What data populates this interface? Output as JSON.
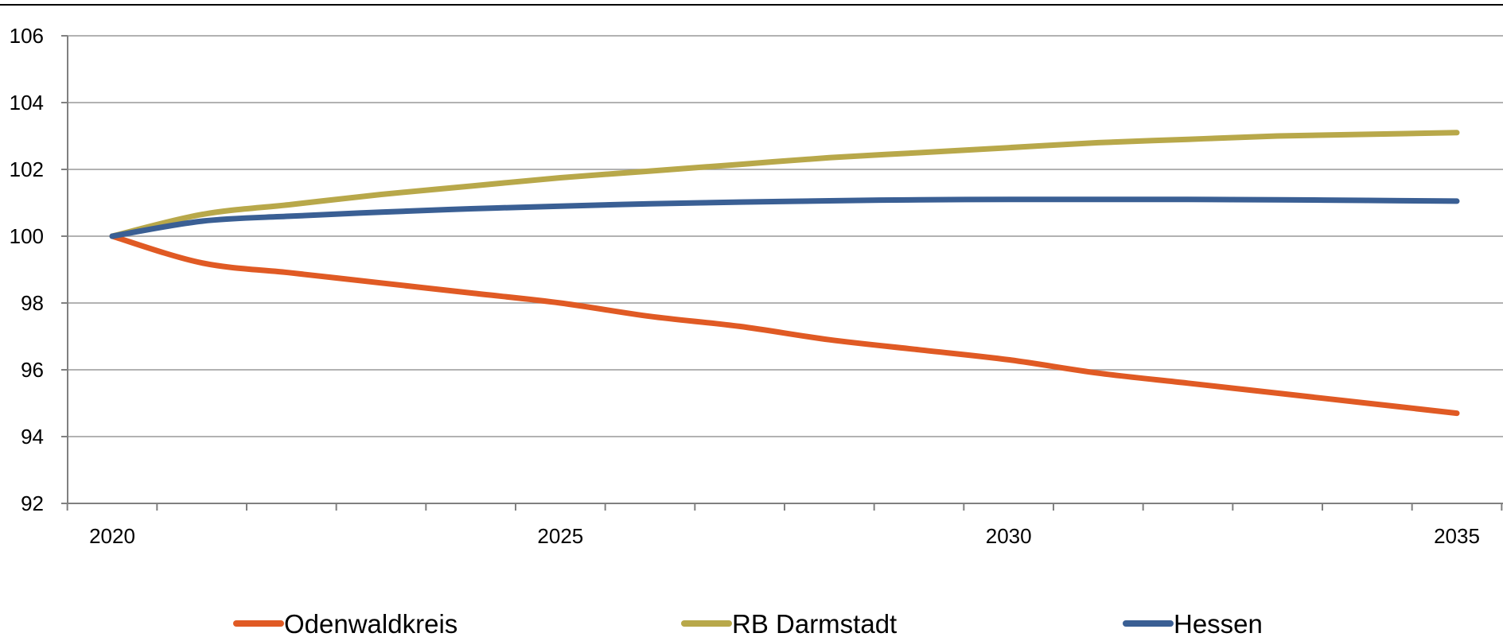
{
  "chart_data": {
    "type": "line",
    "title": "",
    "xlabel": "",
    "ylabel": "",
    "xlim": [
      2020,
      2035
    ],
    "ylim": [
      92,
      106
    ],
    "x_ticks": [
      2020,
      2025,
      2030,
      2035
    ],
    "y_ticks": [
      92,
      94,
      96,
      98,
      100,
      102,
      104,
      106
    ],
    "grid": "horizontal",
    "legend_position": "bottom",
    "x": [
      2020,
      2021,
      2022,
      2023,
      2024,
      2025,
      2026,
      2027,
      2028,
      2029,
      2030,
      2031,
      2032,
      2033,
      2034,
      2035
    ],
    "series": [
      {
        "name": "Odenwaldkreis",
        "color": "#E05A24",
        "values": [
          100,
          99.2,
          98.9,
          98.6,
          98.3,
          98.0,
          97.6,
          97.3,
          96.9,
          96.6,
          96.3,
          95.9,
          95.6,
          95.3,
          95.0,
          94.7
        ]
      },
      {
        "name": "RB Darmstadt",
        "color": "#B8A84A",
        "values": [
          100,
          100.65,
          100.95,
          101.25,
          101.5,
          101.75,
          101.95,
          102.15,
          102.35,
          102.5,
          102.65,
          102.8,
          102.9,
          103.0,
          103.05,
          103.1
        ]
      },
      {
        "name": "Hessen",
        "color": "#3A5F94",
        "values": [
          100,
          100.45,
          100.6,
          100.72,
          100.82,
          100.9,
          100.97,
          101.02,
          101.06,
          101.09,
          101.1,
          101.1,
          101.1,
          101.09,
          101.07,
          101.05
        ]
      }
    ]
  }
}
